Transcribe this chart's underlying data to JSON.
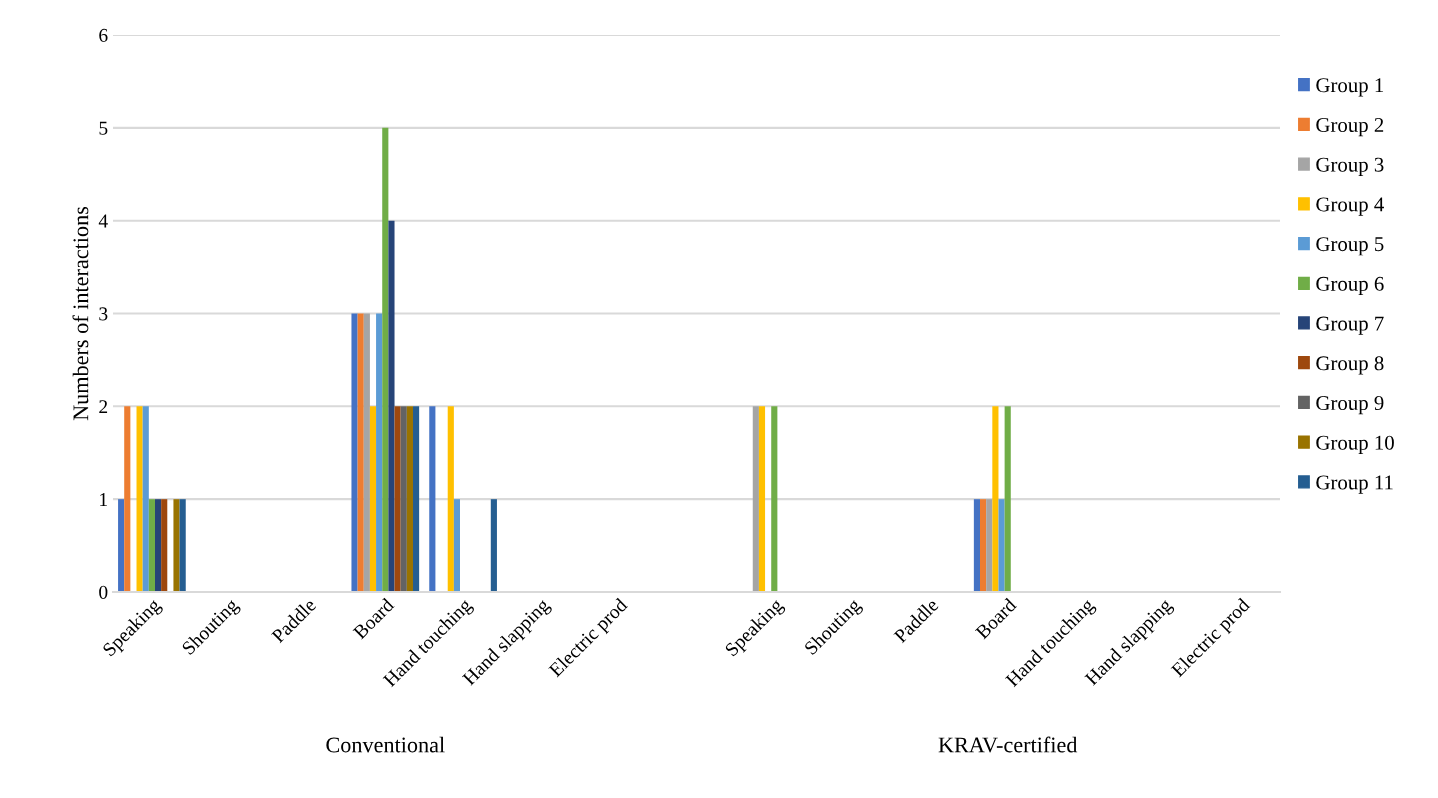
{
  "chart_data": {
    "type": "bar",
    "ylabel": "Numbers of interactions",
    "categories": [
      "Speaking",
      "Shouting",
      "Paddle",
      "Board",
      "Hand touching",
      "Hand slapping",
      "Electric prod",
      null,
      "Speaking",
      "Shouting",
      "Paddle",
      "Board",
      "Hand touching",
      "Hand slapping",
      "Electric prod"
    ],
    "series": [
      {
        "name": "Group 1",
        "color": "#4472c4",
        "values": [
          1,
          0,
          0,
          3,
          2,
          0,
          0,
          0,
          0,
          0,
          0,
          1,
          0,
          0,
          0
        ]
      },
      {
        "name": "Group 2",
        "color": "#ed7d31",
        "values": [
          2,
          0,
          0,
          3,
          0,
          0,
          0,
          0,
          0,
          0,
          0,
          1,
          0,
          0,
          0
        ]
      },
      {
        "name": "Group 3",
        "color": "#a5a5a5",
        "values": [
          0,
          0,
          0,
          3,
          0,
          0,
          0,
          0,
          2,
          0,
          0,
          1,
          0,
          0,
          0
        ]
      },
      {
        "name": "Group 4",
        "color": "#ffc000",
        "values": [
          2,
          0,
          0,
          2,
          2,
          0,
          0,
          0,
          2,
          0,
          0,
          2,
          0,
          0,
          0
        ]
      },
      {
        "name": "Group 5",
        "color": "#5b9bd5",
        "values": [
          2,
          0,
          0,
          3,
          1,
          0,
          0,
          0,
          0,
          0,
          0,
          1,
          0,
          0,
          0
        ]
      },
      {
        "name": "Group 6",
        "color": "#70ad47",
        "values": [
          1,
          0,
          0,
          5,
          0,
          0,
          0,
          0,
          2,
          0,
          0,
          2,
          0,
          0,
          0
        ]
      },
      {
        "name": "Group 7",
        "color": "#264478",
        "values": [
          1,
          0,
          0,
          4,
          0,
          0,
          0,
          0,
          0,
          0,
          0,
          0,
          0,
          0,
          0
        ]
      },
      {
        "name": "Group 8",
        "color": "#9e480e",
        "values": [
          1,
          0,
          0,
          2,
          0,
          0,
          0,
          0,
          0,
          0,
          0,
          0,
          0,
          0,
          0
        ]
      },
      {
        "name": "Group 9",
        "color": "#636363",
        "values": [
          0,
          0,
          0,
          2,
          0,
          0,
          0,
          0,
          0,
          0,
          0,
          0,
          0,
          0,
          0
        ]
      },
      {
        "name": "Group 10",
        "color": "#997300",
        "values": [
          1,
          0,
          0,
          2,
          0,
          0,
          0,
          0,
          0,
          0,
          0,
          0,
          0,
          0,
          0
        ]
      },
      {
        "name": "Group 11",
        "color": "#255e91",
        "values": [
          1,
          0,
          0,
          2,
          1,
          0,
          0,
          0,
          0,
          0,
          0,
          0,
          0,
          0,
          0
        ]
      }
    ],
    "ylim": [
      0,
      6
    ],
    "yticks": [
      0,
      1,
      2,
      3,
      4,
      5,
      6
    ],
    "grid": "y",
    "legend": "right",
    "annotations": [
      "Conventional",
      "KRAV-certified"
    ]
  }
}
